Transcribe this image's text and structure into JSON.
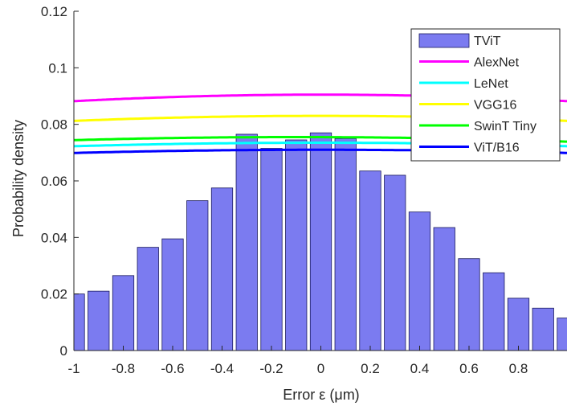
{
  "chart_data": {
    "type": "bar",
    "xlabel": "Error ε (μm)",
    "ylabel": "Probability density",
    "xlim": [
      -1,
      1
    ],
    "ylim": [
      0,
      0.12
    ],
    "xticks": [
      -1,
      -0.8,
      -0.6,
      -0.4,
      -0.2,
      0,
      0.2,
      0.4,
      0.6,
      0.8
    ],
    "xtick_labels": [
      "-1",
      "-0.8",
      "-0.6",
      "-0.4",
      "-0.2",
      "0",
      "0.2",
      "0.4",
      "0.6",
      "0.8"
    ],
    "yticks": [
      0,
      0.02,
      0.04,
      0.06,
      0.08,
      0.1,
      0.12
    ],
    "ytick_labels": [
      "0",
      "0.02",
      "0.04",
      "0.06",
      "0.08",
      "0.1",
      "0.12"
    ],
    "grid": false,
    "legend_position": "top-right",
    "histogram": {
      "name": "TViT",
      "color": "#7b7bf0",
      "bin_width": 0.1,
      "bin_centers": [
        -1.0,
        -0.9,
        -0.8,
        -0.7,
        -0.6,
        -0.5,
        -0.4,
        -0.3,
        -0.2,
        -0.1,
        0.0,
        0.1,
        0.2,
        0.3,
        0.4,
        0.5,
        0.6,
        0.7,
        0.8,
        0.9,
        1.0
      ],
      "values": [
        0.02,
        0.021,
        0.0265,
        0.0365,
        0.0395,
        0.053,
        0.0575,
        0.0765,
        0.0715,
        0.0745,
        0.077,
        0.075,
        0.0635,
        0.062,
        0.049,
        0.0435,
        0.0325,
        0.0275,
        0.0185,
        0.015,
        0.0115
      ]
    },
    "series": [
      {
        "name": "AlexNet",
        "color": "#ff00ff",
        "mean": 0.0,
        "peak": 0.0905
      },
      {
        "name": "LeNet",
        "color": "#00ffff",
        "mean": 0.0,
        "peak": 0.0735
      },
      {
        "name": "VGG16",
        "color": "#ffff00",
        "mean": 0.0,
        "peak": 0.083
      },
      {
        "name": "SwinT Tiny",
        "color": "#00ff00",
        "mean": -0.1,
        "peak": 0.0755
      },
      {
        "name": "ViT/B16",
        "color": "#0000ff",
        "mean": 0.0,
        "peak": 0.071
      }
    ]
  }
}
